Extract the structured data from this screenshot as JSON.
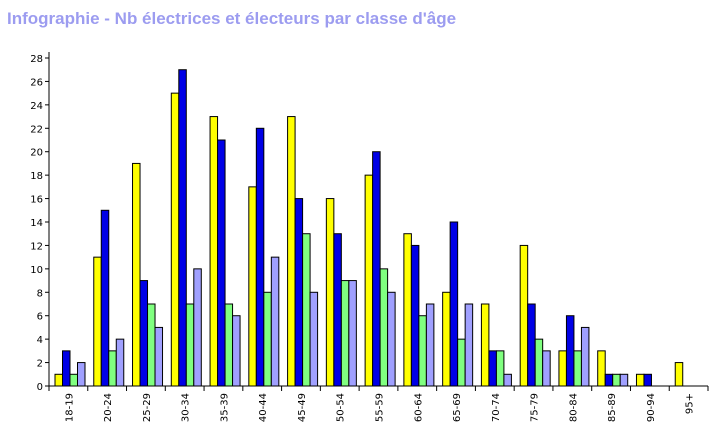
{
  "title": "Infographie - Nb électrices et électeurs par classe d'âge",
  "colors": {
    "title": "#9c9cf0",
    "axis": "#000000"
  },
  "chart_data": {
    "type": "bar",
    "title": "Infographie - Nb électrices et électeurs par classe d'âge",
    "xlabel": "",
    "ylabel": "",
    "ylim": [
      0,
      28
    ],
    "yticks": [
      0,
      2,
      4,
      6,
      8,
      10,
      12,
      14,
      16,
      18,
      20,
      22,
      24,
      26,
      28
    ],
    "grid": false,
    "categories": [
      "18-19",
      "20-24",
      "25-29",
      "30-34",
      "35-39",
      "40-44",
      "45-49",
      "50-54",
      "55-59",
      "60-64",
      "65-69",
      "70-74",
      "75-79",
      "80-84",
      "85-89",
      "90-94",
      "95+"
    ],
    "series": [
      {
        "color": "#ffff00",
        "values": [
          1,
          11,
          19,
          25,
          23,
          17,
          23,
          16,
          18,
          13,
          8,
          7,
          12,
          3,
          3,
          1,
          2
        ]
      },
      {
        "color": "#0000e6",
        "values": [
          3,
          15,
          9,
          27,
          21,
          22,
          16,
          13,
          20,
          12,
          14,
          3,
          7,
          6,
          1,
          1,
          0
        ]
      },
      {
        "color": "#80ff80",
        "values": [
          1,
          3,
          7,
          7,
          7,
          8,
          13,
          9,
          10,
          6,
          4,
          3,
          4,
          3,
          1,
          0,
          0
        ]
      },
      {
        "color": "#a0a0ff",
        "values": [
          2,
          4,
          5,
          10,
          6,
          11,
          8,
          9,
          8,
          7,
          7,
          1,
          3,
          5,
          1,
          0,
          0
        ]
      }
    ]
  }
}
